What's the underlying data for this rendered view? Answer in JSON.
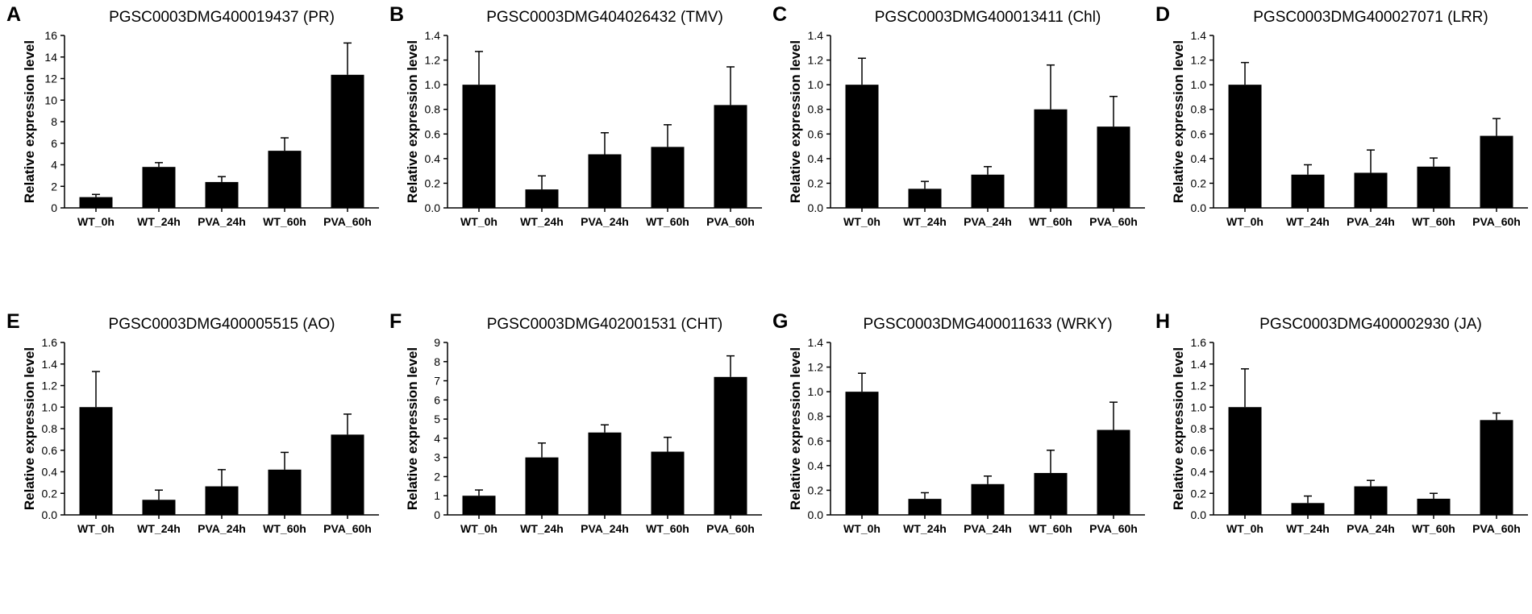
{
  "chart_data": [
    {
      "panel": "A",
      "type": "bar",
      "title": "PGSC0003DMG400019437 (PR)",
      "ylabel": "Relative expression level",
      "xlabel": "",
      "categories": [
        "WT_0h",
        "WT_24h",
        "PVA_24h",
        "WT_60h",
        "PVA_60h"
      ],
      "values": [
        1.0,
        3.8,
        2.4,
        5.3,
        12.35
      ],
      "errors": [
        0.25,
        0.4,
        0.5,
        1.2,
        2.95
      ],
      "ylim": [
        0,
        16
      ],
      "yticks": [
        "0",
        "2",
        "4",
        "6",
        "8",
        "10",
        "12",
        "14",
        "16"
      ]
    },
    {
      "panel": "B",
      "type": "bar",
      "title": "PGSC0003DMG404026432 (TMV)",
      "ylabel": "Relative expression level",
      "xlabel": "",
      "categories": [
        "WT_0h",
        "WT_24h",
        "PVA_24h",
        "WT_60h",
        "PVA_60h"
      ],
      "values": [
        1.0,
        0.15,
        0.435,
        0.495,
        0.835
      ],
      "errors": [
        0.27,
        0.11,
        0.175,
        0.18,
        0.31
      ],
      "ylim": [
        0,
        1.4
      ],
      "yticks": [
        "0.0",
        "0.2",
        "0.4",
        "0.6",
        "0.8",
        "1.0",
        "1.2",
        "1.4"
      ]
    },
    {
      "panel": "C",
      "type": "bar",
      "title": "PGSC0003DMG400013411 (Chl)",
      "ylabel": "Relative expression level",
      "xlabel": "",
      "categories": [
        "WT_0h",
        "WT_24h",
        "PVA_24h",
        "WT_60h",
        "PVA_60h"
      ],
      "values": [
        1.0,
        0.155,
        0.27,
        0.8,
        0.66
      ],
      "errors": [
        0.215,
        0.06,
        0.065,
        0.36,
        0.245
      ],
      "ylim": [
        0,
        1.4
      ],
      "yticks": [
        "0.0",
        "0.2",
        "0.4",
        "0.6",
        "0.8",
        "1.0",
        "1.2",
        "1.4"
      ]
    },
    {
      "panel": "D",
      "type": "bar",
      "title": "PGSC0003DMG400027071 (LRR)",
      "ylabel": "Relative expression level",
      "xlabel": "",
      "categories": [
        "WT_0h",
        "WT_24h",
        "PVA_24h",
        "WT_60h",
        "PVA_60h"
      ],
      "values": [
        1.0,
        0.27,
        0.285,
        0.335,
        0.585
      ],
      "errors": [
        0.18,
        0.08,
        0.185,
        0.07,
        0.14
      ],
      "ylim": [
        0,
        1.4
      ],
      "yticks": [
        "0.0",
        "0.2",
        "0.4",
        "0.6",
        "0.8",
        "1.0",
        "1.2",
        "1.4"
      ]
    },
    {
      "panel": "E",
      "type": "bar",
      "title": "PGSC0003DMG400005515 (AO)",
      "ylabel": "Relative expression level",
      "xlabel": "",
      "categories": [
        "WT_0h",
        "WT_24h",
        "PVA_24h",
        "WT_60h",
        "PVA_60h"
      ],
      "values": [
        1.0,
        0.14,
        0.265,
        0.42,
        0.745
      ],
      "errors": [
        0.33,
        0.09,
        0.155,
        0.16,
        0.19
      ],
      "ylim": [
        0,
        1.6
      ],
      "yticks": [
        "0.0",
        "0.2",
        "0.4",
        "0.6",
        "0.8",
        "1.0",
        "1.2",
        "1.4",
        "1.6"
      ]
    },
    {
      "panel": "F",
      "type": "bar",
      "title": "PGSC0003DMG402001531 (CHT)",
      "ylabel": "Relative expression level",
      "xlabel": "",
      "categories": [
        "WT_0h",
        "WT_24h",
        "PVA_24h",
        "WT_60h",
        "PVA_60h"
      ],
      "values": [
        1.0,
        3.0,
        4.3,
        3.3,
        7.2
      ],
      "errors": [
        0.3,
        0.75,
        0.4,
        0.75,
        1.1
      ],
      "ylim": [
        0,
        9
      ],
      "yticks": [
        "0",
        "1",
        "2",
        "3",
        "4",
        "5",
        "6",
        "7",
        "8",
        "9"
      ]
    },
    {
      "panel": "G",
      "type": "bar",
      "title": "PGSC0003DMG400011633 (WRKY)",
      "ylabel": "Relative expression level",
      "xlabel": "",
      "categories": [
        "WT_0h",
        "WT_24h",
        "PVA_24h",
        "WT_60h",
        "PVA_60h"
      ],
      "values": [
        1.0,
        0.13,
        0.25,
        0.34,
        0.69
      ],
      "errors": [
        0.15,
        0.05,
        0.065,
        0.185,
        0.225
      ],
      "ylim": [
        0,
        1.4
      ],
      "yticks": [
        "0.0",
        "0.2",
        "0.4",
        "0.6",
        "0.8",
        "1.0",
        "1.2",
        "1.4"
      ]
    },
    {
      "panel": "H",
      "type": "bar",
      "title": "PGSC0003DMG400002930 (JA)",
      "ylabel": "Relative expression level",
      "xlabel": "",
      "categories": [
        "WT_0h",
        "WT_24h",
        "PVA_24h",
        "WT_60h",
        "PVA_60h"
      ],
      "values": [
        1.0,
        0.11,
        0.265,
        0.15,
        0.88
      ],
      "errors": [
        0.355,
        0.065,
        0.055,
        0.05,
        0.065
      ],
      "ylim": [
        0,
        1.6
      ],
      "yticks": [
        "0.0",
        "0.2",
        "0.4",
        "0.6",
        "0.8",
        "1.0",
        "1.2",
        "1.4",
        "1.6"
      ]
    }
  ],
  "colors": {
    "bar": "#000000",
    "axis": "#000000",
    "background": "#ffffff"
  }
}
